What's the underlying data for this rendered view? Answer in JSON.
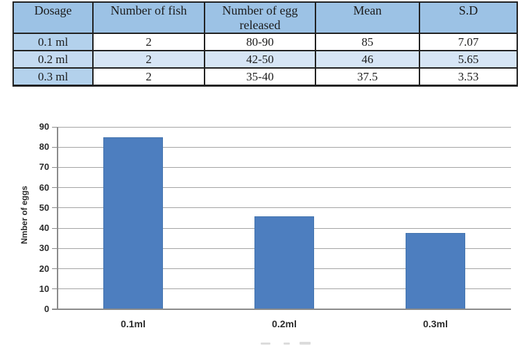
{
  "table": {
    "headers": [
      "Dosage",
      "Number of fish",
      "Number of egg released",
      "Mean",
      "S.D"
    ],
    "rows": [
      [
        "0.1 ml",
        "2",
        "80-90",
        "85",
        "7.07"
      ],
      [
        "0.2 ml",
        "2",
        "42-50",
        "46",
        "5.65"
      ],
      [
        "0.3 ml",
        "2",
        "35-40",
        "37.5",
        "3.53"
      ]
    ]
  },
  "chart_data": {
    "type": "bar",
    "categories": [
      "0.1ml",
      "0.2ml",
      "0.3ml"
    ],
    "values": [
      85,
      46,
      37.5
    ],
    "title": "",
    "xlabel": "",
    "ylabel": "Nmber of eggs",
    "ylim": [
      0,
      90
    ],
    "ytick_step": 10,
    "yticks": [
      0,
      10,
      20,
      30,
      40,
      50,
      60,
      70,
      80,
      90
    ],
    "grid": true,
    "legend": "none",
    "bar_color": "#4d7ebf"
  },
  "colors": {
    "header_bg": "#9cc2e5",
    "col1_bg": "#b3d1ec",
    "alt_row_bg": "#d6e5f5",
    "alt_row_col1_bg": "#c4daf1",
    "table_border": "#202020",
    "bar": "#4d7ebf",
    "bar_border": "#4474ae",
    "grid": "#a3a3a3",
    "axis": "#8a8a8a",
    "chart_text": "#2b2b2b"
  }
}
